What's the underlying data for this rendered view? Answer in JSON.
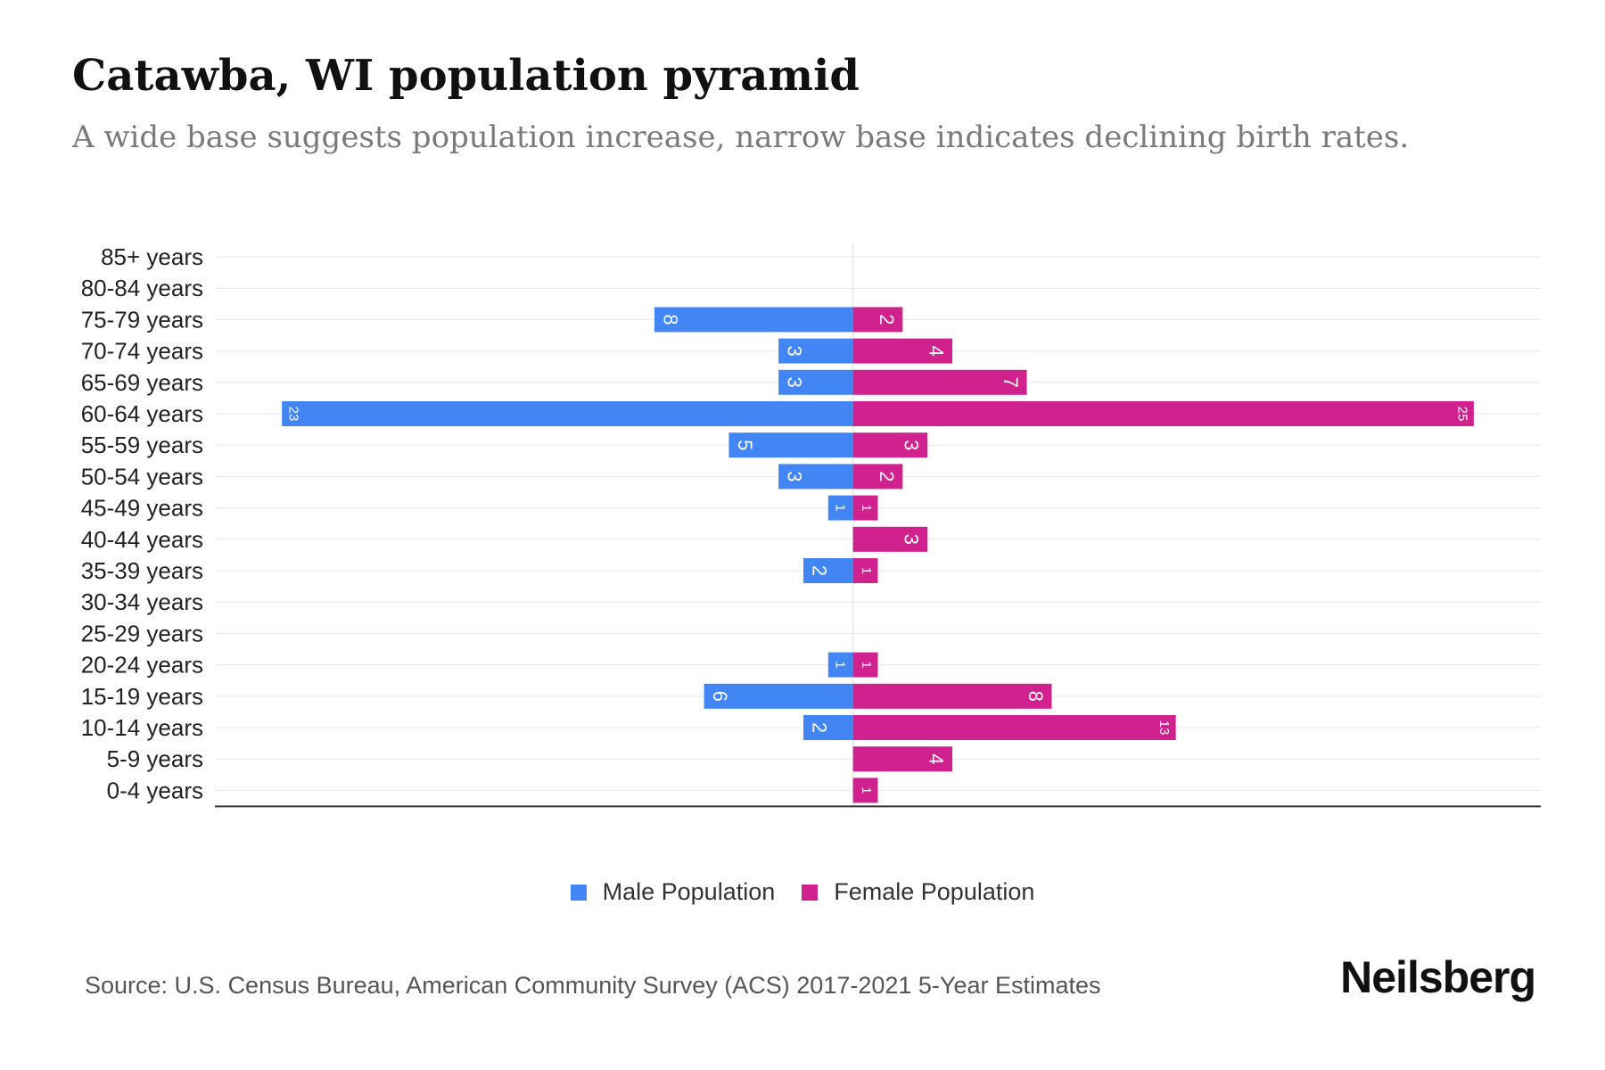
{
  "colors": {
    "male": "#4285f4",
    "female": "#d0218f",
    "grid": "#e6e6e6",
    "axis": "#333333"
  },
  "legend": {
    "male_label": "Male Population",
    "female_label": "Female Population"
  },
  "source": "Source: U.S. Census Bureau, American Community Survey (ACS) 2017-2021 5-Year Estimates",
  "brand": "Neilsberg",
  "chart_data": {
    "type": "bar",
    "orientation": "horizontal-diverging",
    "title": "Catawba, WI population pyramid",
    "subtitle": "A wide base suggests population increase, narrow base indicates declining birth rates.",
    "categories": [
      "85+ years",
      "80-84 years",
      "75-79 years",
      "70-74 years",
      "65-69 years",
      "60-64 years",
      "55-59 years",
      "50-54 years",
      "45-49 years",
      "40-44 years",
      "35-39 years",
      "30-34 years",
      "25-29 years",
      "20-24 years",
      "15-19 years",
      "10-14 years",
      "5-9 years",
      "0-4 years"
    ],
    "series": [
      {
        "name": "Male Population",
        "values": [
          0,
          0,
          8,
          3,
          3,
          23,
          5,
          3,
          1,
          0,
          2,
          0,
          0,
          1,
          6,
          2,
          0,
          0
        ]
      },
      {
        "name": "Female Population",
        "values": [
          0,
          0,
          2,
          4,
          7,
          25,
          3,
          2,
          1,
          3,
          1,
          0,
          0,
          1,
          8,
          13,
          4,
          1
        ]
      }
    ],
    "xlim": [
      -25.7,
      27.7
    ],
    "xlabel": "",
    "ylabel": "",
    "legend_position": "bottom-center",
    "grid": true
  }
}
